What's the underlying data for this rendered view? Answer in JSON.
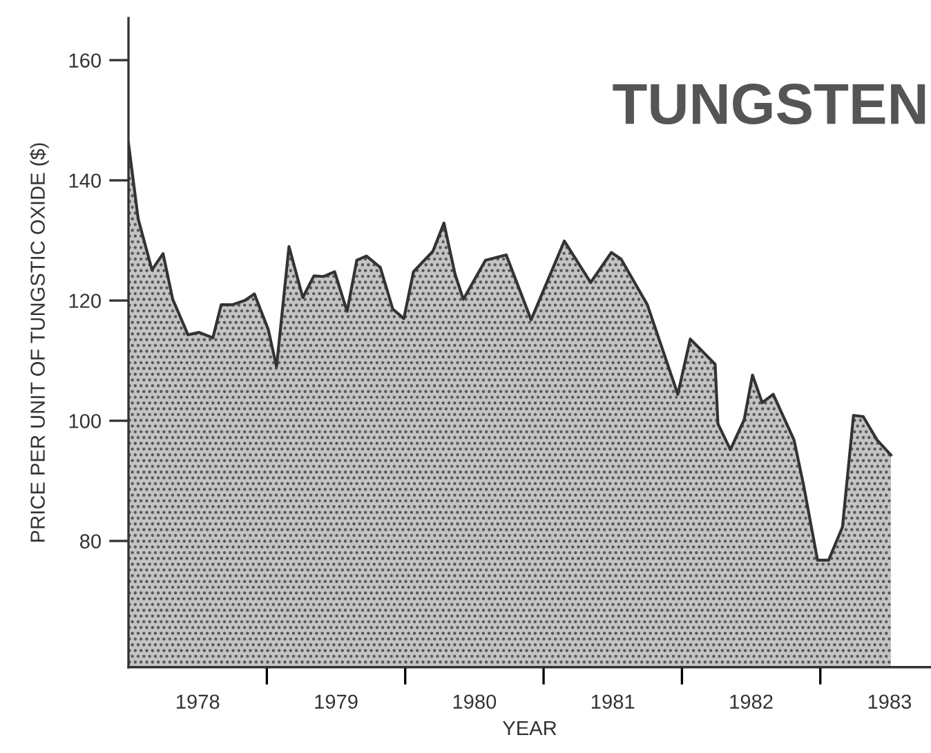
{
  "chart_data": {
    "type": "area",
    "title": "TUNGSTEN",
    "xlabel": "YEAR",
    "ylabel": "PRICE PER UNIT OF TUNGSTIC OXIDE ($)",
    "x": [
      1978.0,
      1978.07,
      1978.17,
      1978.25,
      1978.32,
      1978.43,
      1978.51,
      1978.61,
      1978.67,
      1978.75,
      1978.84,
      1978.91,
      1979.01,
      1979.07,
      1979.16,
      1979.26,
      1979.34,
      1979.41,
      1979.49,
      1979.58,
      1979.65,
      1979.72,
      1979.82,
      1979.91,
      1979.99,
      1980.06,
      1980.2,
      1980.28,
      1980.36,
      1980.42,
      1980.58,
      1980.73,
      1980.91,
      1981.15,
      1981.34,
      1981.49,
      1981.56,
      1981.75,
      1981.97,
      1982.06,
      1982.24,
      1982.26,
      1982.35,
      1982.45,
      1982.51,
      1982.58,
      1982.66,
      1982.81,
      1982.88,
      1982.98,
      1983.06,
      1983.16,
      1983.24,
      1983.31,
      1983.41,
      1983.51
    ],
    "series": [
      {
        "color": "#c4c4c4",
        "values": [
          146.2,
          133.6,
          125.1,
          127.8,
          120.2,
          114.3,
          114.7,
          113.8,
          119.3,
          119.3,
          120,
          121.1,
          115.2,
          109,
          129,
          120.5,
          124.1,
          124,
          124.8,
          118.2,
          126.7,
          127.4,
          125.5,
          118.6,
          117,
          124.8,
          128.2,
          132.9,
          124.4,
          120.2,
          126.7,
          127.6,
          116.8,
          129.9,
          123,
          128,
          126.9,
          119.3,
          104.4,
          113.6,
          109.4,
          99.5,
          95.2,
          100.2,
          107.6,
          103,
          104.4,
          96.8,
          89.2,
          76.8,
          76.8,
          82.3,
          100.9,
          100.7,
          96.8,
          94.3
        ]
      }
    ],
    "xlim": [
      1978,
      1983.8
    ],
    "ylim": [
      59,
      167
    ],
    "xticks": [
      {
        "value": 1978.5,
        "label": "1978"
      },
      {
        "value": 1979,
        "label": null
      },
      {
        "value": 1979.5,
        "label": "1979"
      },
      {
        "value": 1980,
        "label": null
      },
      {
        "value": 1980.5,
        "label": "1980"
      },
      {
        "value": 1981,
        "label": null
      },
      {
        "value": 1981.5,
        "label": "1981"
      },
      {
        "value": 1982,
        "label": null
      },
      {
        "value": 1982.5,
        "label": "1982"
      },
      {
        "value": 1983,
        "label": null
      },
      {
        "value": 1983.5,
        "label": "1983"
      }
    ],
    "yticks": [
      80,
      100,
      120,
      140,
      160
    ],
    "grid": false
  }
}
